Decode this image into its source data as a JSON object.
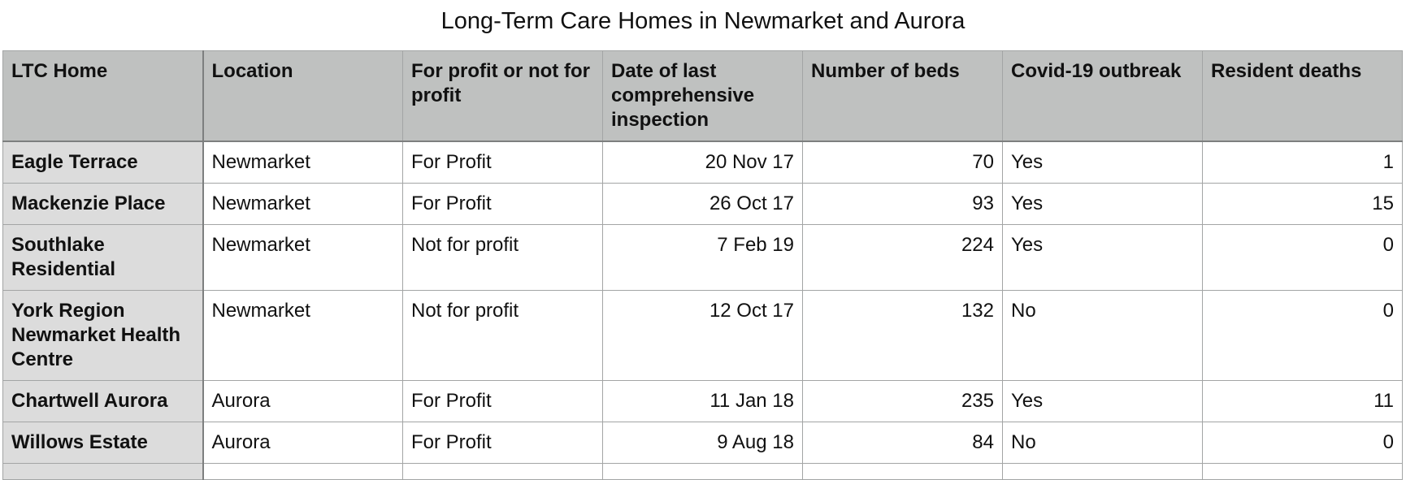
{
  "title": "Long-Term Care Homes in Newmarket and Aurora",
  "table": {
    "columns": [
      "LTC Home",
      "Location",
      "For profit or not for profit",
      "Date of last comprehensive inspection",
      "Number of beds",
      "Covid-19 outbreak",
      "Resident deaths"
    ],
    "rows": [
      {
        "home": "Eagle Terrace",
        "location": "Newmarket",
        "profit": "For Profit",
        "inspection": "20 Nov 17",
        "beds": "70",
        "outbreak": "Yes",
        "deaths": "1"
      },
      {
        "home": "Mackenzie Place",
        "location": "Newmarket",
        "profit": "For Profit",
        "inspection": "26 Oct 17",
        "beds": "93",
        "outbreak": "Yes",
        "deaths": "15"
      },
      {
        "home": "Southlake Residential",
        "location": "Newmarket",
        "profit": "Not for profit",
        "inspection": "7 Feb 19",
        "beds": "224",
        "outbreak": "Yes",
        "deaths": "0"
      },
      {
        "home": "York Region Newmarket Health Centre",
        "location": "Newmarket",
        "profit": "Not for profit",
        "inspection": "12 Oct 17",
        "beds": "132",
        "outbreak": "No",
        "deaths": "0"
      },
      {
        "home": "Chartwell Aurora",
        "location": "Aurora",
        "profit": "For Profit",
        "inspection": "11 Jan 18",
        "beds": "235",
        "outbreak": "Yes",
        "deaths": "11"
      },
      {
        "home": "Willows Estate",
        "location": "Aurora",
        "profit": "For Profit",
        "inspection": "9 Aug 18",
        "beds": "84",
        "outbreak": "No",
        "deaths": "0"
      }
    ]
  }
}
